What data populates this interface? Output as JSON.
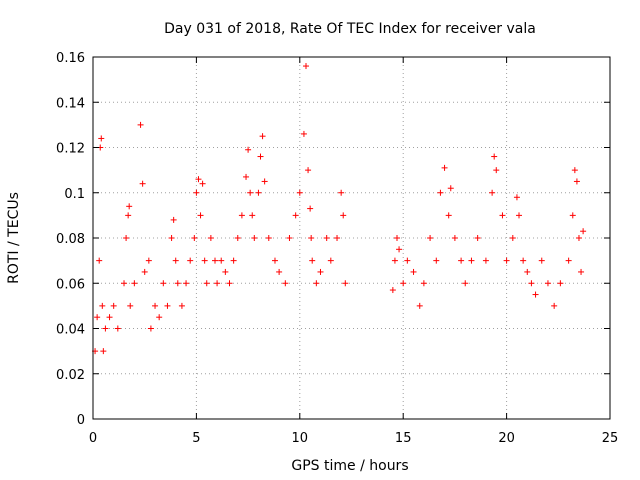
{
  "chart_data": {
    "type": "scatter",
    "title": "Day 031 of 2018, Rate Of TEC Index for receiver vala",
    "xlabel": "GPS time / hours",
    "ylabel": "ROTI / TECUs",
    "xlim": [
      0,
      25
    ],
    "ylim": [
      0,
      0.16
    ],
    "xticks": [
      0,
      5,
      10,
      15,
      20,
      25
    ],
    "yticks": [
      0,
      0.02,
      0.04,
      0.06,
      0.08,
      0.1,
      0.12,
      0.14,
      0.16
    ],
    "xtick_labels": [
      "0",
      "5",
      "10",
      "15",
      "20",
      "25"
    ],
    "ytick_labels": [
      "0",
      "0.02",
      "0.04",
      "0.06",
      "0.08",
      "0.1",
      "0.12",
      "0.14",
      "0.16"
    ],
    "grid": true,
    "marker": "+",
    "color": "#ff0000",
    "data_gap_hours": [
      12.4,
      14.5
    ],
    "series": [
      {
        "name": "ROTI",
        "x": [
          0.1,
          0.2,
          0.3,
          0.35,
          0.4,
          0.45,
          0.5,
          0.6,
          0.8,
          1.0,
          1.2,
          1.5,
          1.6,
          1.7,
          1.75,
          1.8,
          2.0,
          2.3,
          2.4,
          2.5,
          2.7,
          2.8,
          3.0,
          3.2,
          3.4,
          3.6,
          3.8,
          3.9,
          4.0,
          4.1,
          4.3,
          4.5,
          4.7,
          4.9,
          5.0,
          5.1,
          5.2,
          5.3,
          5.4,
          5.5,
          5.7,
          5.9,
          6.0,
          6.2,
          6.4,
          6.6,
          6.8,
          7.0,
          7.2,
          7.4,
          7.5,
          7.6,
          7.7,
          7.8,
          8.0,
          8.1,
          8.2,
          8.3,
          8.5,
          8.8,
          9.0,
          9.3,
          9.5,
          9.8,
          10.0,
          10.2,
          10.3,
          10.4,
          10.5,
          10.55,
          10.6,
          10.8,
          11.0,
          11.3,
          11.5,
          11.8,
          12.0,
          12.1,
          12.2,
          14.5,
          14.6,
          14.7,
          14.8,
          15.0,
          15.2,
          15.5,
          15.8,
          16.0,
          16.3,
          16.6,
          16.8,
          17.0,
          17.2,
          17.3,
          17.5,
          17.8,
          18.0,
          18.3,
          18.6,
          19.0,
          19.3,
          19.4,
          19.5,
          19.8,
          20.0,
          20.3,
          20.5,
          20.6,
          20.8,
          21.0,
          21.2,
          21.4,
          21.7,
          22.0,
          22.3,
          22.6,
          23.0,
          23.2,
          23.3,
          23.4,
          23.5,
          23.6,
          23.7
        ],
        "y": [
          0.03,
          0.045,
          0.07,
          0.12,
          0.124,
          0.05,
          0.03,
          0.04,
          0.045,
          0.05,
          0.04,
          0.06,
          0.08,
          0.09,
          0.094,
          0.05,
          0.06,
          0.13,
          0.104,
          0.065,
          0.07,
          0.04,
          0.05,
          0.045,
          0.06,
          0.05,
          0.08,
          0.088,
          0.07,
          0.06,
          0.05,
          0.06,
          0.07,
          0.08,
          0.1,
          0.106,
          0.09,
          0.104,
          0.07,
          0.06,
          0.08,
          0.07,
          0.06,
          0.07,
          0.065,
          0.06,
          0.07,
          0.08,
          0.09,
          0.107,
          0.119,
          0.1,
          0.09,
          0.08,
          0.1,
          0.116,
          0.125,
          0.105,
          0.08,
          0.07,
          0.065,
          0.06,
          0.08,
          0.09,
          0.1,
          0.126,
          0.156,
          0.11,
          0.093,
          0.08,
          0.07,
          0.06,
          0.065,
          0.08,
          0.07,
          0.08,
          0.1,
          0.09,
          0.06,
          0.057,
          0.07,
          0.08,
          0.075,
          0.06,
          0.07,
          0.065,
          0.05,
          0.06,
          0.08,
          0.07,
          0.1,
          0.111,
          0.09,
          0.102,
          0.08,
          0.07,
          0.06,
          0.07,
          0.08,
          0.07,
          0.1,
          0.116,
          0.11,
          0.09,
          0.07,
          0.08,
          0.098,
          0.09,
          0.07,
          0.065,
          0.06,
          0.055,
          0.07,
          0.06,
          0.05,
          0.06,
          0.07,
          0.09,
          0.11,
          0.105,
          0.08,
          0.065,
          0.083
        ]
      }
    ]
  }
}
